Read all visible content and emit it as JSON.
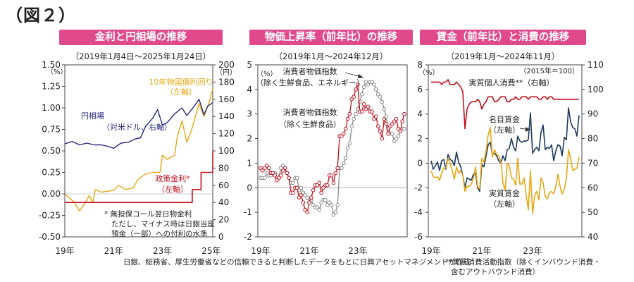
{
  "figure_title": "（図２）",
  "colors": {
    "banner": "#e04a8c",
    "red": "#c0101c",
    "navy": "#262a7e",
    "gold": "#e8a614",
    "grey": "#8a8a8a",
    "gridline": "#d8d8d8"
  },
  "chart_data": [
    {
      "id": "rates-fx",
      "type": "line",
      "title": "金利と円相場の推移",
      "subtitle": "（2019年1月4日～2025年1月24日）",
      "y_left": {
        "unit": "（%）",
        "ylim": [
          -0.5,
          1.5
        ],
        "ticks": [
          "-0.50",
          "-0.25",
          "0.00",
          "0.25",
          "0.50",
          "0.75",
          "1.00",
          "1.25",
          "1.50"
        ]
      },
      "y_right": {
        "unit": "（円）",
        "ylim": [
          0,
          200
        ],
        "ticks": [
          "0",
          "20",
          "40",
          "60",
          "80",
          "100",
          "120",
          "140",
          "160",
          "180",
          "200"
        ]
      },
      "x_ticks": [
        "19年",
        "21年",
        "23年",
        "25年"
      ],
      "series": [
        {
          "name": "10年物国債利回り",
          "label": [
            "10年物国債利回り",
            "（左軸）"
          ],
          "axis": "left",
          "color": "#e8a614",
          "x": [
            2019.0,
            2019.2,
            2019.4,
            2019.6,
            2019.8,
            2020.0,
            2020.15,
            2020.25,
            2020.5,
            2020.75,
            2021.0,
            2021.2,
            2021.5,
            2021.8,
            2022.0,
            2022.3,
            2022.6,
            2022.9,
            2023.0,
            2023.2,
            2023.5,
            2023.6,
            2023.8,
            2024.0,
            2024.2,
            2024.5,
            2024.7,
            2024.9,
            2025.06
          ],
          "y": [
            0.0,
            -0.05,
            -0.1,
            -0.2,
            -0.12,
            -0.02,
            -0.1,
            0.05,
            0.02,
            0.03,
            0.04,
            0.1,
            0.05,
            0.07,
            0.17,
            0.23,
            0.25,
            0.25,
            0.45,
            0.4,
            0.45,
            0.65,
            0.85,
            0.6,
            0.75,
            1.05,
            0.9,
            1.05,
            1.22
          ]
        },
        {
          "name": "円相場",
          "label": [
            "円相場",
            "（対米ドル、右軸）"
          ],
          "axis": "right",
          "color": "#262a7e",
          "x": [
            2019.0,
            2019.3,
            2019.6,
            2019.9,
            2020.2,
            2020.5,
            2020.8,
            2021.0,
            2021.3,
            2021.6,
            2021.9,
            2022.1,
            2022.3,
            2022.6,
            2022.8,
            2023.0,
            2023.2,
            2023.5,
            2023.8,
            2024.0,
            2024.3,
            2024.5,
            2024.7,
            2024.85,
            2025.06
          ],
          "y": [
            108,
            111,
            107,
            109,
            107,
            107,
            105,
            103,
            109,
            110,
            114,
            115,
            128,
            138,
            148,
            130,
            133,
            143,
            150,
            141,
            152,
            160,
            142,
            152,
            156
          ]
        },
        {
          "name": "政策金利",
          "label": [
            "政策金利*",
            "（左軸）"
          ],
          "axis": "left",
          "color": "#c0101c",
          "x": [
            2019.0,
            2024.22,
            2024.22,
            2024.58,
            2024.58,
            2025.06,
            2025.06
          ],
          "y": [
            -0.1,
            -0.1,
            0.05,
            0.05,
            0.25,
            0.25,
            0.5
          ]
        }
      ],
      "note": [
        "*  無担保コール翌日物金利",
        "ただし、マイナス時は日銀当座",
        "預金（一部）への付利の水準"
      ]
    },
    {
      "id": "cpi",
      "type": "line",
      "title": "物価上昇率（前年比）の推移",
      "subtitle": "（2019年1月～2024年12月）",
      "y_left": {
        "unit": "（%）",
        "ylim": [
          -2,
          5
        ],
        "ticks": [
          "-2",
          "-1",
          "0",
          "1",
          "2",
          "3",
          "4",
          "5"
        ]
      },
      "x_ticks": [
        "19年",
        "21年",
        "23年"
      ],
      "series": [
        {
          "name": "消費者物価指数（除く生鮮食品）",
          "label": [
            "消費者物価指数",
            "（除く生鮮食品）"
          ],
          "color": "#c0101c",
          "marker": "circle",
          "y": [
            0.8,
            0.7,
            0.8,
            0.9,
            0.8,
            0.6,
            0.6,
            0.5,
            0.3,
            0.4,
            0.5,
            0.7,
            0.8,
            0.6,
            0.4,
            -0.2,
            -0.2,
            0.0,
            0.0,
            -0.4,
            -0.3,
            -0.6,
            -0.9,
            -1.0,
            -0.6,
            -0.4,
            -0.1,
            0.1,
            0.1,
            0.2,
            -0.2,
            0.0,
            0.1,
            0.1,
            0.5,
            0.5,
            0.2,
            0.6,
            0.8,
            2.1,
            2.1,
            2.2,
            2.4,
            2.8,
            3.0,
            3.6,
            3.7,
            4.0,
            4.2,
            3.1,
            3.1,
            3.4,
            3.2,
            3.3,
            3.1,
            3.1,
            2.8,
            2.9,
            2.5,
            2.3,
            2.0,
            2.8,
            2.6,
            2.2,
            2.5,
            2.6,
            2.7,
            2.8,
            2.4,
            2.3,
            2.7,
            3.0
          ]
        },
        {
          "name": "消費者物価指数（除く生鮮食品、エネルギー）",
          "label": [
            "消費者物価指数",
            "（除く生鮮食品、エネルギー）"
          ],
          "color": "#8a8a8a",
          "marker": "circle",
          "y": [
            0.4,
            0.4,
            0.4,
            0.6,
            0.5,
            0.5,
            0.6,
            0.6,
            0.5,
            0.4,
            0.8,
            0.9,
            0.8,
            0.6,
            0.4,
            0.2,
            0.2,
            0.4,
            0.4,
            -0.1,
            0.0,
            -0.2,
            -0.3,
            -0.4,
            -0.6,
            -0.5,
            -0.7,
            -0.8,
            -0.8,
            -0.9,
            -0.6,
            -0.5,
            -0.5,
            -0.7,
            -0.6,
            -0.7,
            -1.1,
            -1.0,
            -0.7,
            0.8,
            0.8,
            1.0,
            1.2,
            1.6,
            1.8,
            2.5,
            2.8,
            3.0,
            3.2,
            3.5,
            3.8,
            4.1,
            4.3,
            4.2,
            4.3,
            4.3,
            4.2,
            4.0,
            3.8,
            3.7,
            3.5,
            3.2,
            2.9,
            2.4,
            2.2,
            2.2,
            1.9,
            2.0,
            2.1,
            2.3,
            2.4,
            2.4
          ]
        }
      ],
      "annotations": []
    },
    {
      "id": "wages",
      "type": "line",
      "title": "賃金（前年比）と消費の推移",
      "subtitle": "（2019年1月～2024年11月）",
      "y_left": {
        "unit": "（%）",
        "ylim": [
          -6,
          8
        ],
        "ticks": [
          "-6",
          "-4",
          "-2",
          "0",
          "2",
          "4",
          "6",
          "8"
        ]
      },
      "y_right": {
        "ylim": [
          40,
          110
        ],
        "ticks": [
          "40",
          "50",
          "60",
          "70",
          "80",
          "90",
          "100",
          "110"
        ]
      },
      "x_ticks": [
        "19年",
        "21年",
        "23年"
      ],
      "right_note": "（2015年＝100）",
      "series": [
        {
          "name": "実質個人消費**",
          "label": [
            "実質個人消費**（右軸）"
          ],
          "axis": "right",
          "color": "#c0101c",
          "y": [
            103,
            103,
            103,
            103,
            103,
            102,
            103,
            103,
            104,
            102,
            102,
            102,
            103,
            102,
            101,
            99,
            84,
            92,
            94,
            95,
            95,
            95,
            96,
            95,
            92,
            94,
            95,
            97,
            97,
            97,
            95,
            95,
            96,
            97,
            97,
            97,
            95,
            95,
            96,
            96,
            97,
            96,
            96,
            97,
            97,
            97,
            96,
            97,
            97,
            97,
            97,
            96,
            96,
            97,
            97,
            96,
            97,
            97,
            96,
            96,
            96,
            96,
            96,
            96,
            96,
            96,
            96,
            96,
            96,
            96,
            96
          ]
        },
        {
          "name": "名目賃金",
          "label": [
            "名目賃金",
            "（左軸）"
          ],
          "axis": "left",
          "color": "#1d3a5e",
          "y": [
            0.2,
            -0.5,
            -0.2,
            0.1,
            -0.6,
            0.2,
            0.3,
            -0.5,
            0.7,
            0.3,
            0.2,
            -0.2,
            0.9,
            0.1,
            -0.3,
            -1.0,
            -2.0,
            -1.2,
            -1.3,
            -1.4,
            -0.9,
            -0.8,
            -2.0,
            -2.3,
            -0.1,
            -0.3,
            0.6,
            1.5,
            1.7,
            0.7,
            0.8,
            0.6,
            0.2,
            0.0,
            0.6,
            0.2,
            1.1,
            1.2,
            2.0,
            1.3,
            1.0,
            2.2,
            1.8,
            1.7,
            1.8,
            1.8,
            1.9,
            4.1,
            0.8,
            1.1,
            1.3,
            1.0,
            2.5,
            3.1,
            1.1,
            1.3,
            1.2,
            1.5,
            0.2,
            1.0,
            1.5,
            1.4,
            0.6,
            2.1,
            1.9,
            4.5,
            3.4,
            2.9,
            2.8,
            2.2,
            3.9
          ]
        },
        {
          "name": "実質賃金",
          "label": [
            "実質賃金",
            "（左軸）"
          ],
          "axis": "left",
          "color": "#e8a614",
          "y": [
            -0.6,
            -1.1,
            -1.2,
            -1.1,
            -1.4,
            -0.8,
            -0.4,
            -0.4,
            0.4,
            0.0,
            -0.6,
            -1.3,
            -0.3,
            -0.8,
            -0.6,
            -1.0,
            -2.3,
            -1.9,
            -1.9,
            -1.7,
            -1.3,
            -0.3,
            -1.9,
            -2.1,
            0.4,
            0.1,
            1.0,
            2.3,
            2.9,
            0.5,
            1.1,
            0.7,
            0.6,
            0.1,
            -1.6,
            -2.2,
            0.0,
            -0.2,
            -1.2,
            -1.3,
            -1.8,
            0.4,
            -1.7,
            -1.7,
            -1.2,
            -2.6,
            -3.8,
            -0.6,
            -4.1,
            -2.6,
            -2.3,
            -3.0,
            -1.2,
            -1.6,
            -2.7,
            -2.9,
            -2.4,
            -2.3,
            -2.5,
            -1.9,
            -0.9,
            -1.9,
            -2.5,
            -2.1,
            -1.3,
            1.1,
            0.4,
            -0.6,
            -0.5,
            -0.4,
            0.5
          ]
        }
      ]
    }
  ],
  "footer": {
    "source": "日銀、総務省、厚生労働省などの信頼できると判断したデータをもとに日興アセットマネジメントが作成",
    "note_lines": [
      "**実質消費活動指数（除くインバウンド消費・",
      "含むアウトバウンド消費）"
    ]
  }
}
